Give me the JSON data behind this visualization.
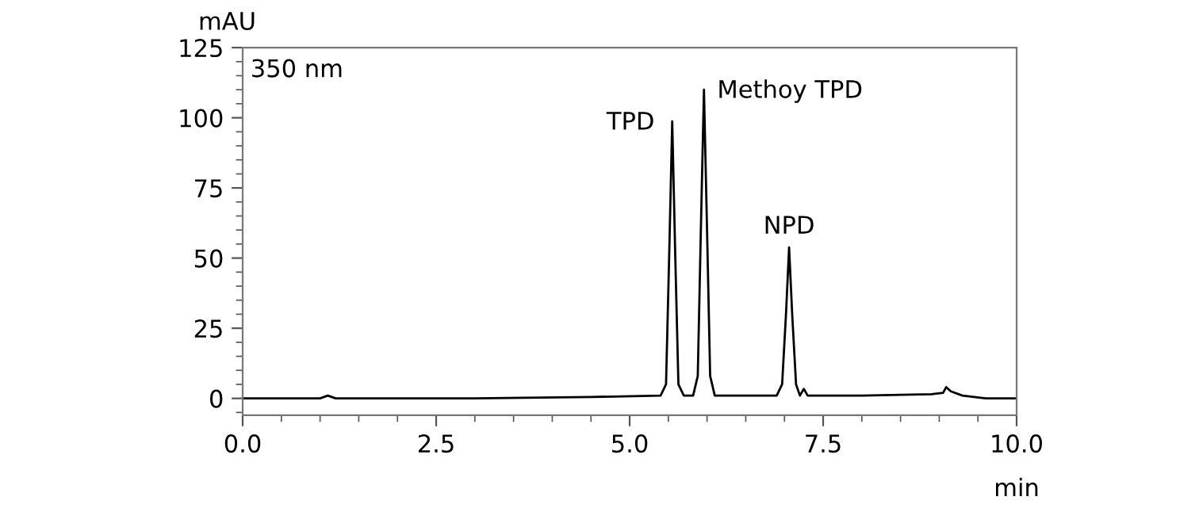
{
  "chart_data": {
    "type": "line",
    "xlabel": "min",
    "ylabel": "mAU",
    "annotations": [
      "350 nm",
      {
        "text": "TPD",
        "x": 5.55,
        "y": 98.7
      },
      {
        "text": "Methoy TPD",
        "x": 5.96,
        "y": 110
      },
      {
        "text": "NPD",
        "x": 7.06,
        "y": 53.8
      }
    ],
    "x": [
      0,
      1.0,
      1.1,
      1.2,
      3,
      4.5,
      5.4,
      5.47,
      5.51,
      5.55,
      5.59,
      5.63,
      5.7,
      5.82,
      5.88,
      5.92,
      5.96,
      6.0,
      6.04,
      6.1,
      6.3,
      6.9,
      6.97,
      7.02,
      7.06,
      7.1,
      7.15,
      7.2,
      7.25,
      7.3,
      7.4,
      8.0,
      8.9,
      9.05,
      9.09,
      9.15,
      9.3,
      9.6,
      10.0
    ],
    "series": [
      {
        "color": "#000000",
        "values": [
          0,
          0,
          1,
          0,
          0,
          0.5,
          1,
          5,
          50,
          98.7,
          50,
          5,
          1,
          1,
          8,
          60,
          110,
          60,
          8,
          1,
          1,
          1,
          5,
          30,
          53.8,
          30,
          5,
          1,
          3.4,
          1,
          1,
          1,
          1.5,
          2,
          4,
          2.5,
          1,
          0,
          0
        ]
      }
    ],
    "xlim": [
      0,
      10
    ],
    "ylim": [
      -6,
      125
    ],
    "xticks": [
      {
        "value": 0,
        "label": "0.0"
      },
      {
        "value": 2.5,
        "label": "2.5"
      },
      {
        "value": 5,
        "label": "5.0"
      },
      {
        "value": 7.5,
        "label": "7.5"
      },
      {
        "value": 10,
        "label": "10.0"
      }
    ],
    "yticks": [
      0,
      25,
      50,
      75,
      100,
      125
    ],
    "grid": false,
    "legend": false,
    "marker": "none",
    "line_style": "solid"
  }
}
